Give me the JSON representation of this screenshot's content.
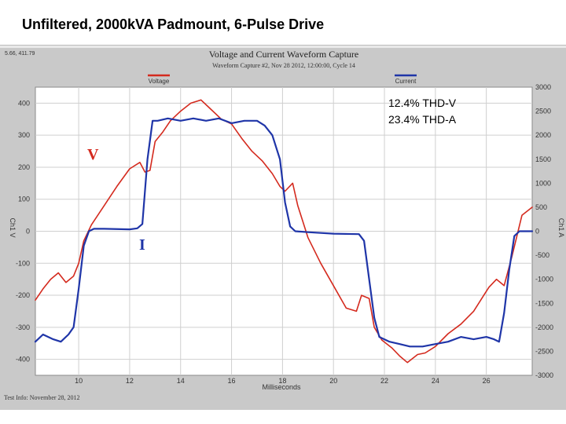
{
  "slide_title": "Unfiltered, 2000kVA Padmount, 6-Pulse Drive",
  "capture": {
    "cursor_readout": "5.66, 411.79",
    "title": "Voltage and Current Waveform Capture",
    "subtitle": "Waveform Capture #2, Nov 28 2012, 12:00:00, Cycle 14",
    "footer": "Test Info: November 28, 2012",
    "annotation_thd_v": "12.4% THD-V",
    "annotation_thd_a": "23.4% THD-A",
    "label_v": "V",
    "label_i": "I"
  },
  "colors": {
    "voltage": "#d42a1e",
    "current": "#1f35a8",
    "background": "#c9c9c9",
    "plot_background": "#ffffff",
    "grid": "#cfcfcf"
  },
  "chart_data": {
    "type": "line",
    "title": "Voltage and Current Waveform Capture",
    "xlabel": "Milliseconds",
    "ylabel_left": "Ch1 V",
    "ylabel_right": "Ch1 A",
    "xlim": [
      8.3,
      27.8
    ],
    "ylim_left": [
      -450,
      450
    ],
    "ylim_right": [
      -3000,
      3000
    ],
    "x_ticks": [
      "10",
      "12",
      "14",
      "16",
      "18",
      "20",
      "22",
      "24",
      "26"
    ],
    "y_ticks_left": [
      "400",
      "300",
      "200",
      "100",
      "0",
      "-100",
      "-200",
      "-300",
      "-400"
    ],
    "y_ticks_right": [
      "3000",
      "2500",
      "2000",
      "1500",
      "1000",
      "500",
      "0",
      "-500",
      "-1000",
      "-1500",
      "-2000",
      "-2500",
      "-3000"
    ],
    "grid": true,
    "legend_placement": "top",
    "series": [
      {
        "name": "Voltage",
        "axis": "left",
        "x": [
          8.3,
          8.6,
          8.9,
          9.2,
          9.5,
          9.8,
          10.0,
          10.2,
          10.5,
          11.0,
          11.5,
          12.0,
          12.4,
          12.6,
          12.8,
          13.0,
          13.3,
          13.6,
          14.0,
          14.4,
          14.8,
          15.2,
          15.6,
          16.0,
          16.4,
          16.8,
          17.2,
          17.6,
          17.9,
          18.1,
          18.4,
          18.6,
          18.8,
          19.0,
          19.5,
          20.0,
          20.5,
          20.9,
          21.1,
          21.4,
          21.6,
          21.9,
          22.3,
          22.6,
          22.9,
          23.3,
          23.6,
          24.0,
          24.5,
          25.0,
          25.5,
          25.9,
          26.1,
          26.4,
          26.7,
          27.0,
          27.4,
          27.8
        ],
        "y": [
          -215,
          -180,
          -150,
          -130,
          -160,
          -140,
          -100,
          -30,
          20,
          80,
          140,
          195,
          215,
          185,
          190,
          280,
          310,
          345,
          375,
          400,
          410,
          380,
          350,
          335,
          290,
          250,
          220,
          180,
          140,
          125,
          150,
          80,
          30,
          -20,
          -100,
          -170,
          -240,
          -250,
          -200,
          -210,
          -300,
          -340,
          -365,
          -390,
          -410,
          -385,
          -380,
          -360,
          -320,
          -290,
          -250,
          -200,
          -175,
          -150,
          -170,
          -80,
          50,
          75
        ]
      },
      {
        "name": "Current",
        "axis": "right",
        "x": [
          8.3,
          8.6,
          9.0,
          9.3,
          9.6,
          9.8,
          10.0,
          10.2,
          10.4,
          10.6,
          11.0,
          12.0,
          12.3,
          12.5,
          12.7,
          12.9,
          13.1,
          13.5,
          14.0,
          14.5,
          15.0,
          15.5,
          16.0,
          16.5,
          17.0,
          17.3,
          17.6,
          17.9,
          18.1,
          18.3,
          18.5,
          19.0,
          20.0,
          21.0,
          21.2,
          21.4,
          21.6,
          21.8,
          22.2,
          22.6,
          23.0,
          23.5,
          24.0,
          24.5,
          25.0,
          25.5,
          26.0,
          26.3,
          26.5,
          26.7,
          26.9,
          27.1,
          27.3,
          27.5,
          27.8
        ],
        "y": [
          -2300,
          -2150,
          -2250,
          -2300,
          -2150,
          -2000,
          -1200,
          -300,
          0,
          50,
          50,
          40,
          60,
          150,
          1500,
          2300,
          2300,
          2350,
          2300,
          2350,
          2300,
          2350,
          2250,
          2300,
          2300,
          2200,
          2000,
          1500,
          600,
          100,
          0,
          -20,
          -50,
          -60,
          -200,
          -1000,
          -1800,
          -2200,
          -2300,
          -2350,
          -2400,
          -2400,
          -2350,
          -2300,
          -2200,
          -2250,
          -2200,
          -2250,
          -2300,
          -1700,
          -800,
          -100,
          0,
          0,
          0
        ]
      }
    ]
  }
}
